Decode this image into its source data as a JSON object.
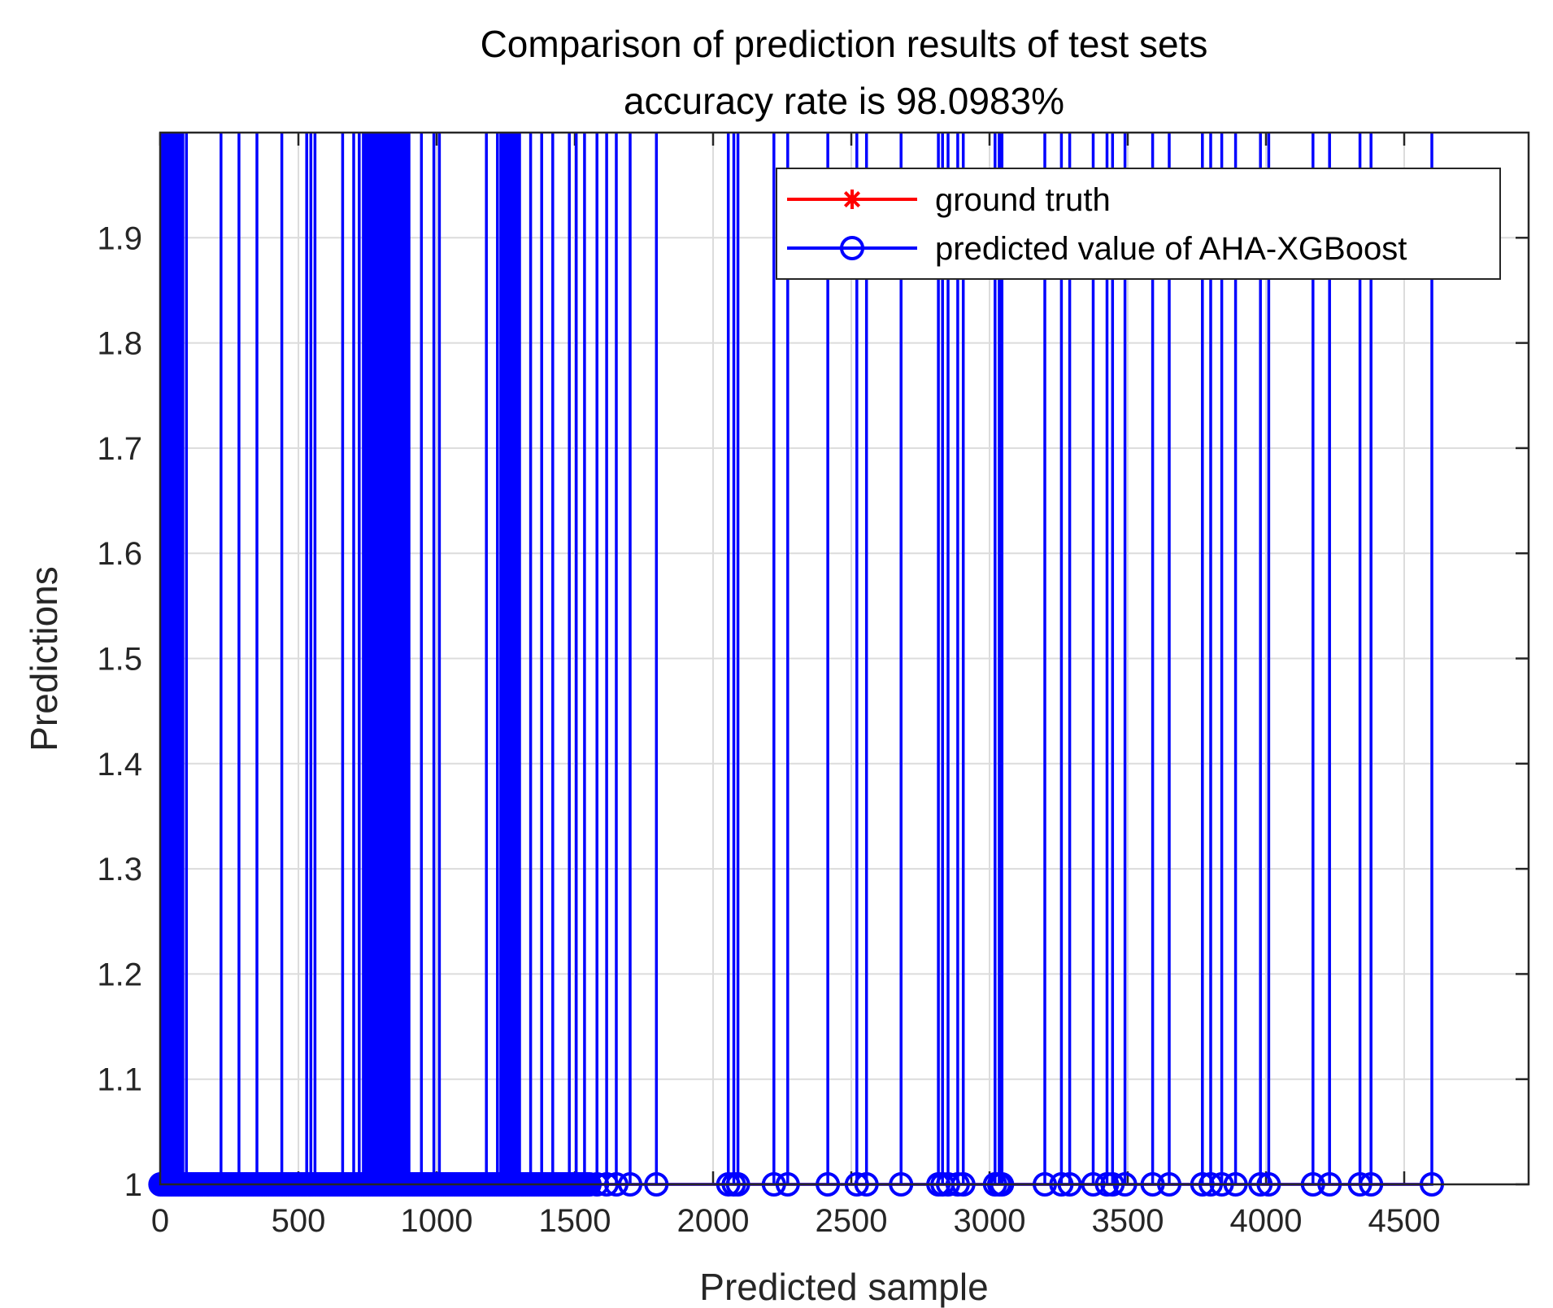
{
  "chart_data": {
    "type": "line",
    "title": "Comparison of prediction results of test sets",
    "subtitle": "accuracy rate is 98.0983%",
    "xlabel": "Predicted sample",
    "ylabel": "Predictions",
    "xlim": [
      0,
      4950
    ],
    "ylim": [
      1,
      2
    ],
    "x_ticks": [
      0,
      500,
      1000,
      1500,
      2000,
      2500,
      3000,
      3500,
      4000,
      4500
    ],
    "x_tick_labels": [
      "0",
      "500",
      "1000",
      "1500",
      "2000",
      "2500",
      "3000",
      "3500",
      "4000",
      "4500"
    ],
    "y_ticks": [
      1,
      1.1,
      1.2,
      1.3,
      1.4,
      1.5,
      1.6,
      1.7,
      1.8,
      1.9
    ],
    "y_tick_labels": [
      "1",
      "1.1",
      "1.2",
      "1.3",
      "1.4",
      "1.5",
      "1.6",
      "1.7",
      "1.8",
      "1.9"
    ],
    "grid": true,
    "legend_position": "top-right",
    "n_samples": 4584,
    "series": [
      {
        "name": "ground truth",
        "color": "#ff0000",
        "marker": "asterisk",
        "baseline_value": 1,
        "spike_value": 2,
        "spike_x": []
      },
      {
        "name": "predicted value of AHA-XGBoost",
        "color": "#0000ff",
        "marker": "circle",
        "baseline_value": 1,
        "spike_value": 2,
        "spike_x": [
          5,
          12,
          20,
          28,
          37,
          45,
          55,
          63,
          72,
          82,
          95,
          220,
          285,
          350,
          440,
          530,
          545,
          560,
          660,
          700,
          720,
          735,
          745,
          755,
          760,
          770,
          780,
          790,
          800,
          808,
          815,
          822,
          830,
          838,
          845,
          852,
          860,
          868,
          875,
          882,
          890,
          900,
          945,
          990,
          1010,
          1180,
          1220,
          1232,
          1240,
          1248,
          1256,
          1264,
          1272,
          1280,
          1290,
          1300,
          1340,
          1380,
          1420,
          1480,
          1505,
          1535,
          1580,
          1615,
          1650,
          1700,
          1795,
          2055,
          2075,
          2090,
          2220,
          2270,
          2415,
          2520,
          2555,
          2680,
          2815,
          2830,
          2850,
          2885,
          2905,
          3020,
          3035,
          3045,
          3200,
          3260,
          3290,
          3375,
          3425,
          3445,
          3490,
          3590,
          3650,
          3770,
          3800,
          3840,
          3890,
          3980,
          4010,
          4170,
          4230,
          4340,
          4380,
          4600
        ]
      }
    ]
  }
}
